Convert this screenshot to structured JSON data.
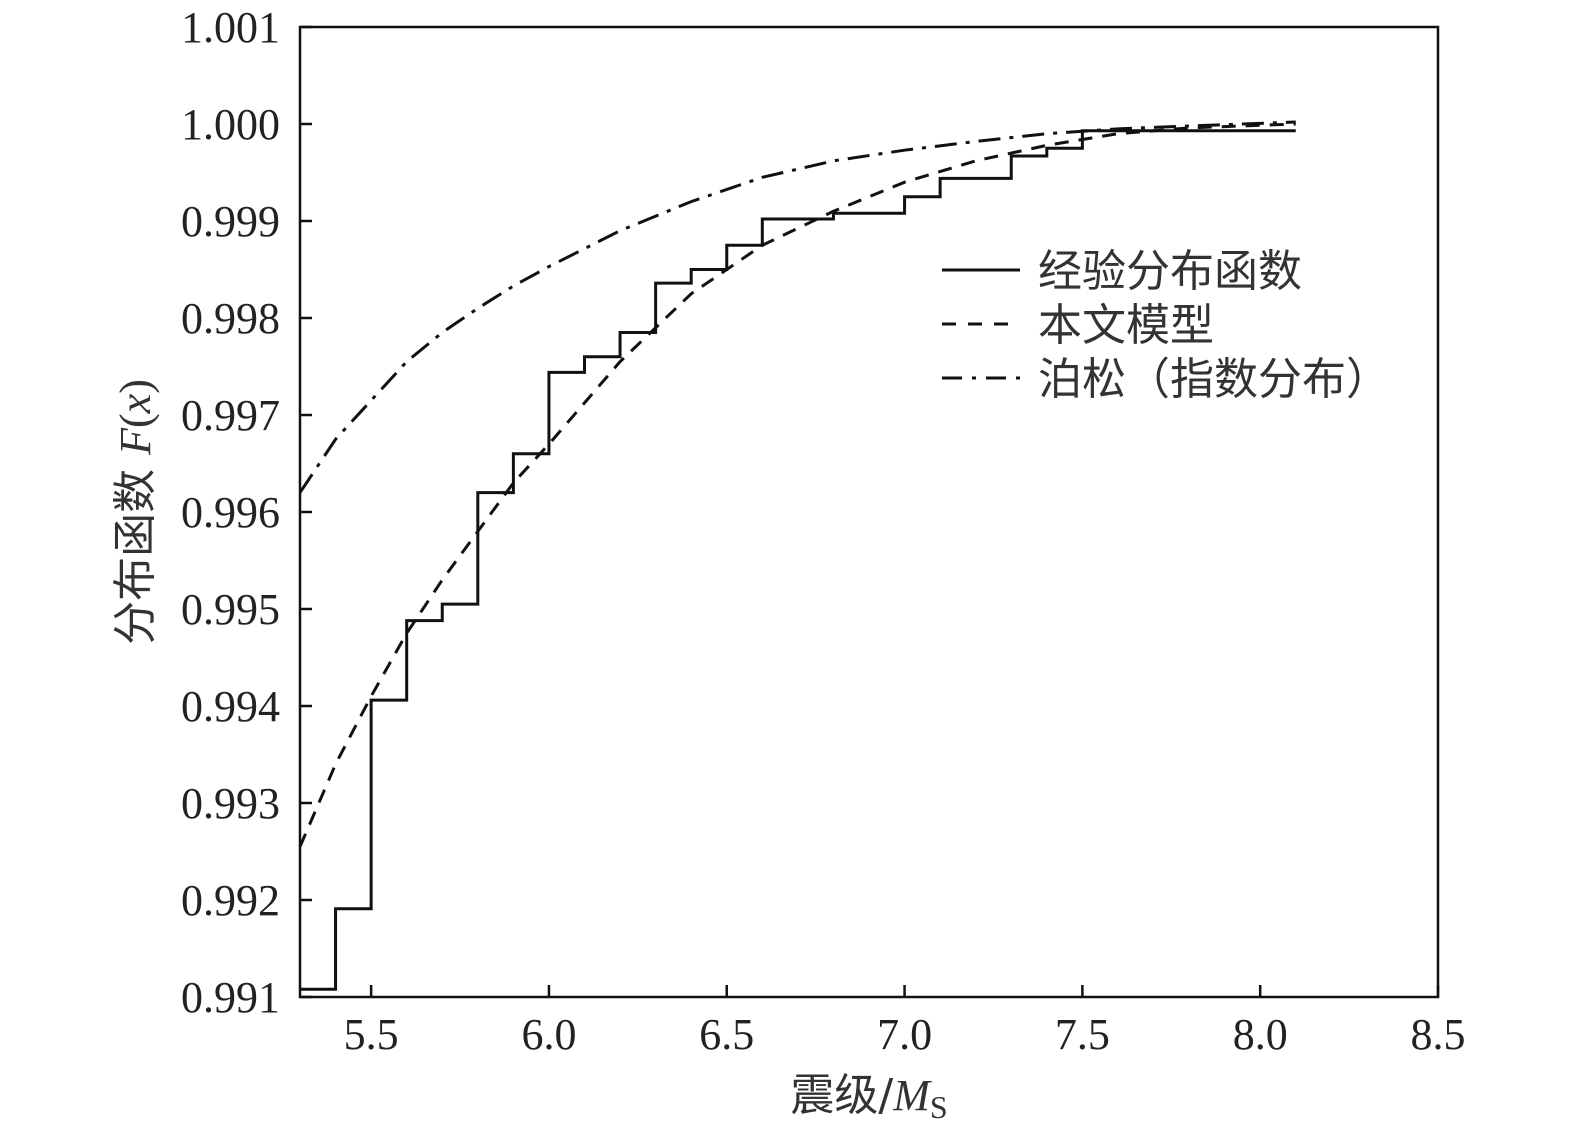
{
  "chart_data": {
    "type": "line",
    "xlabel_main": "震级/",
    "xlabel_italic": "M",
    "xlabel_sub": "S",
    "ylabel_main": "分布函数 ",
    "ylabel_italic_F": "F",
    "ylabel_paren_open": "(",
    "ylabel_italic_x": "x",
    "ylabel_paren_close": ")",
    "xlim": [
      5.3,
      8.5
    ],
    "ylim": [
      0.991,
      1.001
    ],
    "x_ticks": [
      5.5,
      6.0,
      6.5,
      7.0,
      7.5,
      8.0,
      8.5
    ],
    "x_tick_labels": [
      "5.5",
      "6.0",
      "6.5",
      "7.0",
      "7.5",
      "8.0",
      "8.5"
    ],
    "y_ticks": [
      0.991,
      0.992,
      0.993,
      0.994,
      0.995,
      0.996,
      0.997,
      0.998,
      0.999,
      1.0,
      1.001
    ],
    "y_tick_labels": [
      "0.991",
      "0.992",
      "0.993",
      "0.994",
      "0.995",
      "0.996",
      "0.997",
      "0.998",
      "0.999",
      "1.000",
      "1.001"
    ],
    "legend_position": "upper-right",
    "series": [
      {
        "name": "经验分布函数",
        "style": "solid",
        "kind": "step",
        "x": [
          5.3,
          5.4,
          5.5,
          5.6,
          5.7,
          5.8,
          5.9,
          6.0,
          6.1,
          6.2,
          6.3,
          6.4,
          6.5,
          6.6,
          6.7,
          6.8,
          6.9,
          7.0,
          7.1,
          7.2,
          7.3,
          7.4,
          7.5,
          7.6,
          8.1
        ],
        "y": [
          0.99108,
          0.99191,
          0.99406,
          0.99488,
          0.99505,
          0.9962,
          0.9966,
          0.99744,
          0.9976,
          0.99785,
          0.99836,
          0.9985,
          0.99875,
          0.99902,
          0.99902,
          0.99908,
          0.99908,
          0.99925,
          0.99944,
          0.99944,
          0.99967,
          0.99975,
          0.99993,
          0.99993,
          0.99993
        ]
      },
      {
        "name": "本文模型",
        "style": "dashed",
        "kind": "line",
        "x": [
          5.3,
          5.4,
          5.5,
          5.6,
          5.7,
          5.8,
          5.9,
          6.0,
          6.2,
          6.4,
          6.6,
          6.8,
          7.0,
          7.2,
          7.4,
          7.6,
          7.8,
          8.1
        ],
        "y": [
          0.99255,
          0.9934,
          0.9941,
          0.99475,
          0.9953,
          0.9958,
          0.9963,
          0.9967,
          0.99755,
          0.99825,
          0.99875,
          0.9991,
          0.9994,
          0.99962,
          0.99978,
          0.9999,
          0.99996,
          1.0
        ]
      },
      {
        "name": "泊松（指数分布）",
        "style": "dashdot",
        "kind": "line",
        "x": [
          5.3,
          5.4,
          5.5,
          5.6,
          5.7,
          5.8,
          5.9,
          6.0,
          6.2,
          6.4,
          6.6,
          6.8,
          7.0,
          7.2,
          7.4,
          7.6,
          7.8,
          8.1
        ],
        "y": [
          0.9962,
          0.99675,
          0.99715,
          0.99755,
          0.99785,
          0.9981,
          0.99833,
          0.99853,
          0.9989,
          0.9992,
          0.99945,
          0.99962,
          0.99973,
          0.99982,
          0.9999,
          0.99995,
          0.99998,
          1.00002
        ]
      }
    ]
  }
}
